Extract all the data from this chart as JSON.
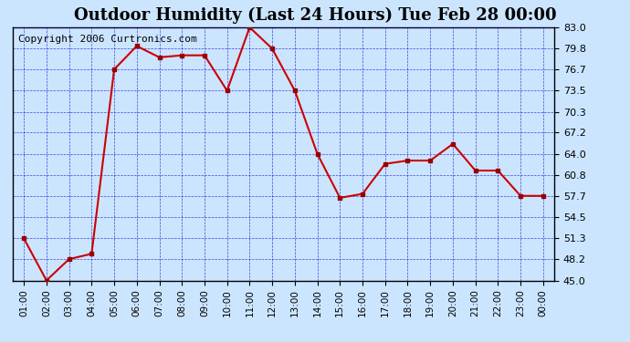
{
  "title": "Outdoor Humidity (Last 24 Hours) Tue Feb 28 00:00",
  "copyright": "Copyright 2006 Curtronics.com",
  "x_labels": [
    "01:00",
    "02:00",
    "03:00",
    "04:00",
    "05:00",
    "06:00",
    "07:00",
    "08:00",
    "09:00",
    "10:00",
    "11:00",
    "12:00",
    "13:00",
    "14:00",
    "15:00",
    "16:00",
    "17:00",
    "18:00",
    "19:00",
    "20:00",
    "21:00",
    "22:00",
    "23:00",
    "00:00"
  ],
  "x_values": [
    1,
    2,
    3,
    4,
    5,
    6,
    7,
    8,
    9,
    10,
    11,
    12,
    13,
    14,
    15,
    16,
    17,
    18,
    19,
    20,
    21,
    22,
    23,
    24
  ],
  "y_values": [
    51.3,
    45.0,
    48.2,
    49.0,
    76.7,
    80.2,
    78.5,
    78.8,
    78.8,
    73.5,
    83.0,
    79.8,
    73.5,
    64.0,
    57.4,
    58.0,
    62.5,
    63.0,
    63.0,
    65.5,
    61.5,
    61.5,
    57.7,
    57.7
  ],
  "ylim": [
    45.0,
    83.0
  ],
  "yticks": [
    45.0,
    48.2,
    51.3,
    54.5,
    57.7,
    60.8,
    64.0,
    67.2,
    70.3,
    73.5,
    76.7,
    79.8,
    83.0
  ],
  "ytick_labels": [
    "45.0",
    "48.2",
    "51.3",
    "54.5",
    "57.7",
    "60.8",
    "64.0",
    "67.2",
    "70.3",
    "73.5",
    "76.7",
    "79.8",
    "83.0"
  ],
  "line_color": "#cc0000",
  "marker_color": "#990000",
  "bg_color": "#cce5ff",
  "grid_color": "#0000cc",
  "border_color": "#000000",
  "title_fontsize": 13,
  "copyright_fontsize": 8
}
